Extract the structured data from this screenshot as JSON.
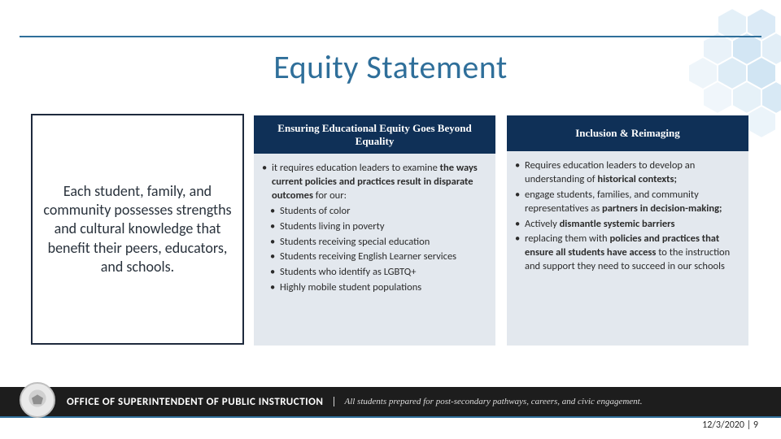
{
  "title": "Equity Statement",
  "accent_color": "#2f6f9a",
  "panel_header_bg": "#0f3057",
  "panel_body_bg": "#e3e8ee",
  "left_statement": "Each student, family, and community possesses strengths and cultural knowledge that benefit their peers, educators, and schools.",
  "columns": [
    {
      "header": "Ensuring Educational Equity Goes Beyond Equality",
      "body_html": "<ul><li>it requires education leaders to examine <b>the ways current policies and practices result in disparate outcomes</b> for our:</li><li class='sub'>Students of color</li><li class='sub'>Students living in poverty</li><li class='sub'>Students receiving special education</li><li class='sub'>Students receiving English Learner services</li><li class='sub'>Students who identify as LGBTQ+</li><li class='sub'>Highly mobile student populations</li></ul>"
    },
    {
      "header": "Inclusion & Reimaging",
      "body_html": "<ul><li>Requires education leaders to develop an understanding of <b>historical contexts;</b></li><li>engage students, families, and community representatives as <b>partners in decision-making;</b></li><li>Actively <b>dismantle systemic barriers</b></li><li>replacing them with <b>policies and practices that ensure all students have access</b> to the instruction and support they need to succeed in our schools</li></ul>"
    }
  ],
  "footer": {
    "org": "OFFICE OF SUPERINTENDENT OF PUBLIC INSTRUCTION",
    "tagline": "All students prepared for post-secondary pathways, careers, and civic engagement."
  },
  "meta": {
    "date": "12/3/2020",
    "page": "9",
    "sep": " | "
  }
}
